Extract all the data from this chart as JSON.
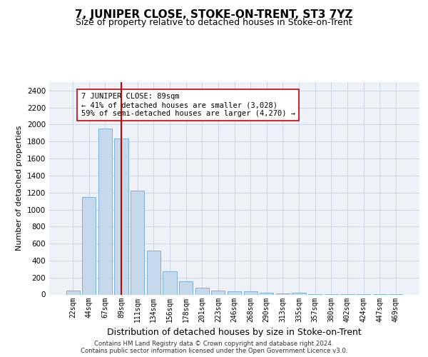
{
  "title": "7, JUNIPER CLOSE, STOKE-ON-TRENT, ST3 7YZ",
  "subtitle": "Size of property relative to detached houses in Stoke-on-Trent",
  "xlabel": "Distribution of detached houses by size in Stoke-on-Trent",
  "ylabel": "Number of detached properties",
  "categories": [
    "22sqm",
    "44sqm",
    "67sqm",
    "89sqm",
    "111sqm",
    "134sqm",
    "156sqm",
    "178sqm",
    "201sqm",
    "223sqm",
    "246sqm",
    "268sqm",
    "290sqm",
    "313sqm",
    "335sqm",
    "357sqm",
    "380sqm",
    "402sqm",
    "424sqm",
    "447sqm",
    "469sqm"
  ],
  "values": [
    50,
    1150,
    1950,
    1840,
    1220,
    520,
    270,
    155,
    80,
    45,
    40,
    35,
    20,
    10,
    20,
    5,
    5,
    5,
    5,
    5,
    5
  ],
  "bar_color": "#c5d8ec",
  "bar_edge_color": "#6faad4",
  "annotation_bar_index": 3,
  "vline_color": "#cc0000",
  "annotation_text": "7 JUNIPER CLOSE: 89sqm\n← 41% of detached houses are smaller (3,028)\n59% of semi-detached houses are larger (4,270) →",
  "annotation_box_color": "#ffffff",
  "annotation_box_edge": "#cc0000",
  "ylim": [
    0,
    2500
  ],
  "yticks": [
    0,
    200,
    400,
    600,
    800,
    1000,
    1200,
    1400,
    1600,
    1800,
    2000,
    2200,
    2400
  ],
  "grid_color": "#d0d8e8",
  "footer": "Contains HM Land Registry data © Crown copyright and database right 2024.\nContains public sector information licensed under the Open Government Licence v3.0.",
  "bg_color": "#eef2f8",
  "title_fontsize": 11,
  "subtitle_fontsize": 9
}
